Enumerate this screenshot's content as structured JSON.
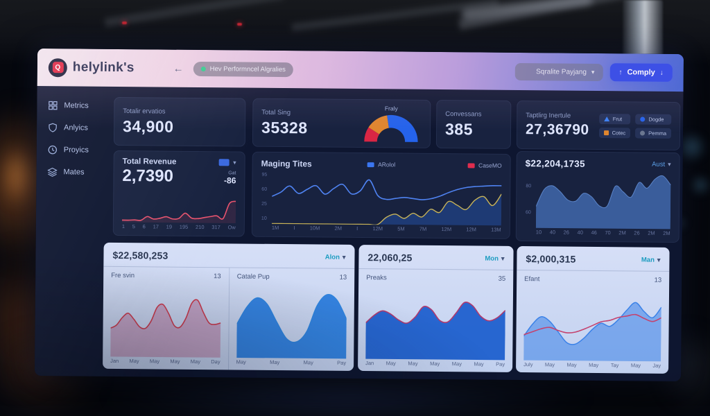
{
  "ui": {
    "chevron_down": "▾",
    "arrow_up": "↑",
    "arrow_down": "↓"
  },
  "colors": {
    "accent_blue": "#2b46e8",
    "brand_red": "#e2263e",
    "badge_green": "#2fd08c",
    "red": "#e02d4e",
    "orange": "#e0862f",
    "teal": "#1b9cc0"
  },
  "header": {
    "brand": "helylink's",
    "logo_letter": "Q",
    "back_arrow": "←",
    "badge": {
      "text": "Hev Performncel Algralies"
    },
    "user_dropdown": {
      "label": "Sqralite Payjang"
    },
    "primary_button": {
      "label": "Comply"
    }
  },
  "sidebar": {
    "items": [
      {
        "label": "Metrics"
      },
      {
        "label": "Anlyics"
      },
      {
        "label": "Proyics"
      },
      {
        "label": "Mates"
      }
    ]
  },
  "stats": [
    {
      "label": "Totalir ervatios",
      "value": "34,900"
    },
    {
      "label": "Total Sing",
      "value": "35328",
      "gauge_label": "Fraly"
    },
    {
      "label": "Convessans",
      "value": "385"
    },
    {
      "label": "Taptlirg Inertule",
      "value": "27,36790",
      "legend": [
        {
          "label": "Frut"
        },
        {
          "label": "Cotec"
        },
        {
          "label": "Dogde"
        },
        {
          "label": "Pemma"
        }
      ]
    }
  ],
  "revenue_card": {
    "title": "Total Revenue",
    "value": "2,7390",
    "delta_label": "Gat",
    "delta_value": "-86"
  },
  "maging_card": {
    "title": "Maging Tites",
    "legend": [
      {
        "label": "ARolol"
      },
      {
        "label": "CaseMO"
      }
    ]
  },
  "right_panel": {
    "value": "$22,204,1735",
    "dropdown": "Aust"
  },
  "bottom_cards": [
    {
      "value": "$22,580,253",
      "dropdown": "Alon",
      "panels": [
        {
          "title": "Fre svin",
          "count": "13"
        },
        {
          "title": "Catale Pup",
          "count": "13"
        }
      ]
    },
    {
      "value": "22,060,25",
      "dropdown": "Mon",
      "panels": [
        {
          "title": "Preaks",
          "count": "35"
        }
      ]
    },
    {
      "value": "$2,000,315",
      "dropdown": "Man",
      "panels": [
        {
          "title": "Efant",
          "count": "13"
        }
      ]
    }
  ],
  "chart_data": [
    {
      "id": "revenue-spark",
      "type": "line",
      "ymax": 100,
      "xlabels": [
        "1",
        "5",
        "6",
        "17",
        "19",
        "195",
        "210",
        "317",
        "Ow"
      ],
      "series": [
        {
          "name": "revenue",
          "color": "#e8536e",
          "width": 1.6,
          "fill": "rgba(232,83,110,0.12)",
          "values": [
            8,
            8,
            9,
            8,
            22,
            13,
            16,
            22,
            14,
            16,
            36,
            18,
            16,
            20,
            24,
            27,
            17,
            74,
            82
          ]
        }
      ]
    },
    {
      "id": "maging",
      "type": "line",
      "ymax": 100,
      "ylabels": [
        "95",
        "60",
        "25",
        "10"
      ],
      "xlabels": [
        "1M",
        "I",
        "10M",
        "2M",
        "I",
        "12M",
        "5M",
        "7M",
        "12M",
        "12M",
        "13M"
      ],
      "series": [
        {
          "name": "CaseMO",
          "color": "#c9b458",
          "width": 1.4,
          "fill": "rgba(37,78,160,0.55)",
          "values": [
            0,
            0,
            0,
            0,
            0,
            0,
            0,
            0,
            0,
            0,
            0,
            0,
            0,
            14,
            20,
            12,
            22,
            15,
            30,
            24,
            45,
            38,
            30,
            48,
            55,
            38,
            60
          ]
        },
        {
          "name": "ARolol",
          "color": "#4f83f2",
          "width": 1.6,
          "values": [
            52,
            60,
            72,
            58,
            66,
            73,
            57,
            68,
            76,
            58,
            64,
            85,
            55,
            48,
            50,
            52,
            50,
            48,
            50,
            55,
            62,
            68,
            72,
            74,
            75,
            76,
            76
          ]
        }
      ]
    },
    {
      "id": "panel-area",
      "type": "area",
      "ymax": 100,
      "ylabels": [
        "80",
        "60"
      ],
      "xlabels": [
        "10",
        "40",
        "26",
        "40",
        "46",
        "70",
        "2M",
        "26",
        "2M",
        "2M"
      ],
      "series": [
        {
          "name": "aust",
          "color": "#5b84c8",
          "width": 1,
          "fill": "rgba(62,100,165,0.9)",
          "values": [
            38,
            68,
            75,
            65,
            50,
            48,
            62,
            56,
            40,
            40,
            75,
            65,
            56,
            82,
            72,
            88,
            94,
            78
          ]
        }
      ]
    },
    {
      "id": "gauge-fraly",
      "type": "gauge",
      "segments": [
        {
          "color": "#d92644",
          "value": 18
        },
        {
          "color": "#e0862f",
          "value": 27
        },
        {
          "color": "#2563eb",
          "value": 55
        }
      ]
    },
    {
      "id": "mini-fresvin",
      "type": "area",
      "ymax": 100,
      "xlabels": [
        "Jan",
        "May",
        "May",
        "May",
        "May",
        "Day"
      ],
      "series": [
        {
          "color": "#cc3b4e",
          "width": 1.6,
          "fill": "rgba(186,120,160,0.55)",
          "values": [
            38,
            42,
            52,
            58,
            50,
            40,
            38,
            48,
            66,
            70,
            58,
            42,
            40,
            52,
            72,
            76,
            60,
            46,
            44,
            46
          ]
        }
      ]
    },
    {
      "id": "mini-catale",
      "type": "area",
      "ymax": 100,
      "xlabels": [
        "May",
        "May",
        "May",
        "Pay"
      ],
      "series": [
        {
          "color": "#2e86e0",
          "width": 1.2,
          "fill": "rgba(44,128,224,0.95)",
          "values": [
            45,
            68,
            80,
            72,
            48,
            26,
            22,
            36,
            70,
            85,
            78,
            52
          ]
        }
      ]
    },
    {
      "id": "preaks-chart",
      "type": "area",
      "ymax": 100,
      "xlabels": [
        "Jan",
        "May",
        "May",
        "May",
        "May",
        "May",
        "Pay"
      ],
      "series": [
        {
          "color": "#b03a6e",
          "width": 1.6,
          "fill": "rgba(31,96,205,0.95)",
          "values": [
            48,
            58,
            64,
            60,
            52,
            48,
            56,
            70,
            66,
            52,
            50,
            62,
            76,
            72,
            58,
            52,
            56,
            66
          ]
        }
      ]
    },
    {
      "id": "efant-chart",
      "type": "line",
      "ymax": 100,
      "xlabels": [
        "July",
        "May",
        "May",
        "May",
        "Tay",
        "May",
        "Jay"
      ],
      "series": [
        {
          "color": "#3b82e8",
          "width": 1.5,
          "fill": "rgba(59,130,232,0.55)",
          "values": [
            32,
            48,
            58,
            52,
            38,
            24,
            22,
            30,
            42,
            50,
            46,
            55,
            68,
            78,
            66,
            58,
            72
          ]
        },
        {
          "color": "#c4426e",
          "width": 1.6,
          "values": [
            34,
            38,
            42,
            44,
            40,
            37,
            38,
            42,
            47,
            52,
            54,
            58,
            60,
            62,
            57,
            53,
            58
          ]
        }
      ]
    }
  ]
}
